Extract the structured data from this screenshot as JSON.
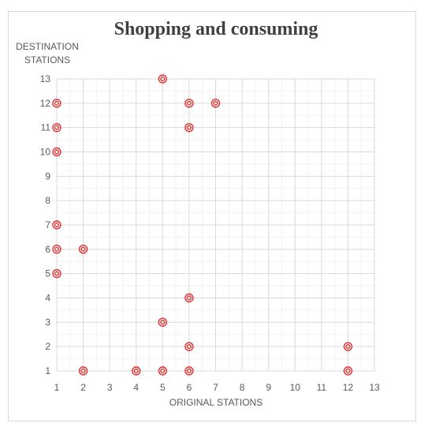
{
  "chart_data": {
    "type": "scatter",
    "title": "Shopping and consuming",
    "xlabel": "ORIGINAL STATIONS",
    "ylabel_lines": [
      "DESTINATION",
      "STATIONS"
    ],
    "xlim": [
      1,
      13
    ],
    "ylim": [
      1,
      13
    ],
    "x_ticks": [
      1,
      2,
      3,
      4,
      5,
      6,
      7,
      8,
      9,
      10,
      11,
      12,
      13
    ],
    "y_ticks": [
      1,
      2,
      3,
      4,
      5,
      6,
      7,
      8,
      9,
      10,
      11,
      12,
      13
    ],
    "grid": true,
    "minor_grid": true,
    "marker": "double-circle",
    "marker_color": "#e03030",
    "points": [
      {
        "x": 1,
        "y": 12
      },
      {
        "x": 1,
        "y": 11
      },
      {
        "x": 1,
        "y": 10
      },
      {
        "x": 1,
        "y": 7
      },
      {
        "x": 1,
        "y": 6
      },
      {
        "x": 1,
        "y": 5
      },
      {
        "x": 2,
        "y": 6
      },
      {
        "x": 2,
        "y": 1
      },
      {
        "x": 4,
        "y": 1
      },
      {
        "x": 5,
        "y": 13
      },
      {
        "x": 5,
        "y": 3
      },
      {
        "x": 5,
        "y": 1
      },
      {
        "x": 6,
        "y": 12
      },
      {
        "x": 6,
        "y": 11
      },
      {
        "x": 6,
        "y": 4
      },
      {
        "x": 6,
        "y": 2
      },
      {
        "x": 6,
        "y": 1
      },
      {
        "x": 7,
        "y": 12
      },
      {
        "x": 12,
        "y": 2
      },
      {
        "x": 12,
        "y": 1
      }
    ]
  }
}
